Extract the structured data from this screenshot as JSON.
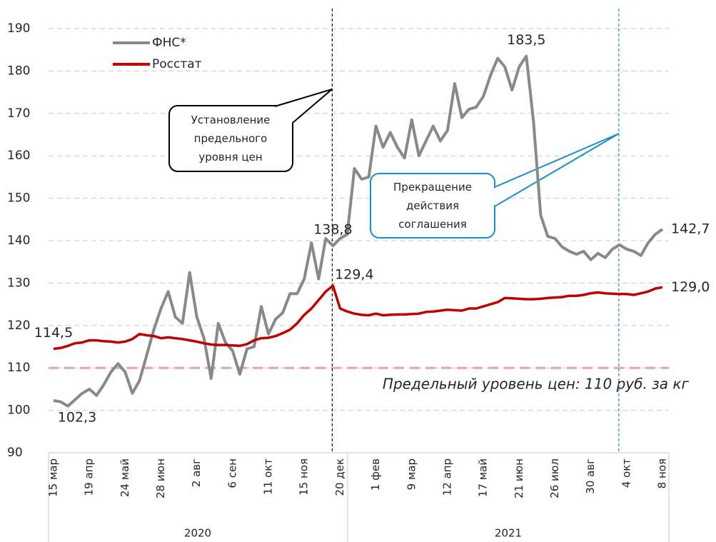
{
  "chart_data": {
    "type": "line",
    "categories": [
      "15 мар",
      null,
      null,
      null,
      null,
      "19 апр",
      null,
      null,
      null,
      null,
      "24 май",
      null,
      null,
      null,
      null,
      "28 июн",
      null,
      null,
      null,
      null,
      "2 авг",
      null,
      null,
      null,
      null,
      "6 сен",
      null,
      null,
      null,
      null,
      "11 окт",
      null,
      null,
      null,
      null,
      "15 ноя",
      null,
      null,
      null,
      null,
      "20 дек",
      null,
      null,
      null,
      null,
      "1 фев",
      null,
      null,
      null,
      null,
      "9 мар",
      null,
      null,
      null,
      null,
      "12 апр",
      null,
      null,
      null,
      null,
      "17 май",
      null,
      null,
      null,
      null,
      "21 июн",
      null,
      null,
      null,
      null,
      "26 июл",
      null,
      null,
      null,
      null,
      "30 авг",
      null,
      null,
      null,
      null,
      "4 окт",
      null,
      null,
      null,
      null,
      "8 ноя"
    ],
    "x_groups": [
      "2020",
      "2021"
    ],
    "series": [
      {
        "name": "ФНС*",
        "color": "#898989",
        "values": [
          102.3,
          102,
          101,
          102.5,
          104,
          105,
          103.5,
          106,
          109,
          111,
          109,
          104,
          107,
          113,
          119,
          124,
          128,
          122,
          120.5,
          132.5,
          122,
          117,
          107.5,
          120.5,
          116,
          114,
          108.5,
          114.5,
          115,
          124.5,
          118,
          121.5,
          123,
          127.5,
          127.5,
          131,
          139.5,
          131,
          140.5,
          138.8,
          140.5,
          141.5,
          157,
          154.5,
          155,
          167,
          162,
          165.5,
          162,
          159.5,
          168.5,
          160,
          163.5,
          167,
          163.5,
          166,
          177,
          169,
          171,
          171.5,
          174,
          179,
          183,
          181,
          175.5,
          181,
          183.5,
          168,
          146,
          141,
          140.5,
          138.5,
          137.5,
          136.8,
          137.5,
          135.5,
          137,
          136,
          138,
          139,
          138,
          137.5,
          136.5,
          139.5,
          141.5,
          142.7
        ],
        "value_labels": [
          "102,3",
          null,
          null,
          null,
          null,
          null,
          null,
          null,
          null,
          null,
          null,
          null,
          null,
          null,
          null,
          null,
          null,
          null,
          null,
          null,
          null,
          null,
          null,
          null,
          null,
          null,
          null,
          null,
          null,
          null,
          null,
          null,
          null,
          null,
          null,
          null,
          null,
          null,
          null,
          "138,8",
          null,
          null,
          null,
          null,
          null,
          null,
          null,
          null,
          null,
          null,
          null,
          null,
          null,
          null,
          null,
          null,
          null,
          null,
          null,
          null,
          null,
          null,
          null,
          null,
          null,
          null,
          "183,5",
          null,
          null,
          null,
          null,
          null,
          null,
          null,
          null,
          null,
          null,
          null,
          null,
          null,
          null,
          null,
          null,
          null,
          null,
          "142,7"
        ]
      },
      {
        "name": "Росстат",
        "color": "#c00000",
        "values": [
          114.5,
          114.7,
          115.2,
          115.8,
          116,
          116.5,
          116.5,
          116.3,
          116.2,
          116,
          116.2,
          116.8,
          118,
          117.7,
          117.5,
          117,
          117.2,
          117,
          116.8,
          116.5,
          116.2,
          115.8,
          115.5,
          115.4,
          115.4,
          115.3,
          115.2,
          115.6,
          116.5,
          117,
          117.1,
          117.5,
          118.2,
          119,
          120.5,
          122.5,
          124,
          126,
          128,
          129.4,
          124,
          123.3,
          122.8,
          122.5,
          122.4,
          122.8,
          122.4,
          122.5,
          122.6,
          122.6,
          122.7,
          122.8,
          123.2,
          123.3,
          123.5,
          123.7,
          123.6,
          123.5,
          124,
          124,
          124.5,
          125,
          125.5,
          126.5,
          126.4,
          126.3,
          126.2,
          126.2,
          126.3,
          126.5,
          126.6,
          126.7,
          127,
          127,
          127.2,
          127.6,
          127.8,
          127.6,
          127.5,
          127.4,
          127.4,
          127.2,
          127.6,
          128,
          128.7,
          129.0
        ],
        "value_labels": [
          "114,5",
          null,
          null,
          null,
          null,
          null,
          null,
          null,
          null,
          null,
          null,
          null,
          null,
          null,
          null,
          null,
          null,
          null,
          null,
          null,
          null,
          null,
          null,
          null,
          null,
          null,
          null,
          null,
          null,
          null,
          null,
          null,
          null,
          null,
          null,
          null,
          null,
          null,
          null,
          "129,4",
          null,
          null,
          null,
          null,
          null,
          null,
          null,
          null,
          null,
          null,
          null,
          null,
          null,
          null,
          null,
          null,
          null,
          null,
          null,
          null,
          null,
          null,
          null,
          null,
          null,
          null,
          null,
          null,
          null,
          null,
          null,
          null,
          null,
          null,
          null,
          null,
          null,
          null,
          null,
          null,
          null,
          null,
          null,
          null,
          null,
          "129,0"
        ]
      }
    ],
    "ylim": [
      90,
      190
    ],
    "yticks": [
      90,
      100,
      110,
      120,
      130,
      140,
      150,
      160,
      170,
      180,
      190
    ],
    "grid": true,
    "legend": "upper left",
    "reference_line": {
      "value": 110,
      "label": "Предельный уровень цен: 110 руб. за кг",
      "color": "#f0a0a8",
      "text_color": "#e06474"
    },
    "events": [
      {
        "at": "20 дек",
        "label": "Установление предельного уровня цен",
        "color": "#000000"
      },
      {
        "at": "4 окт",
        "label": "Прекращение действия соглашения",
        "color": "#1a8fd0"
      }
    ]
  }
}
